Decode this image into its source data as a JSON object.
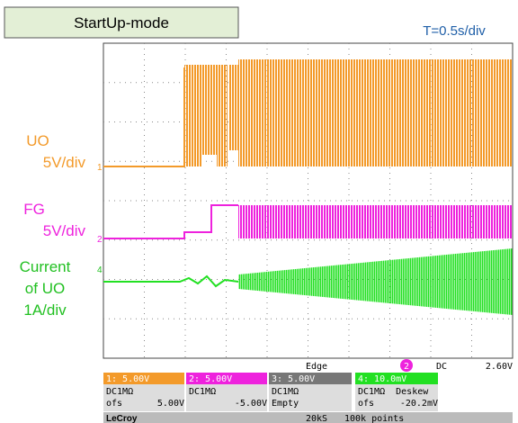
{
  "header": {
    "mode": "StartUp-mode",
    "timebase": "T=0.5s/div"
  },
  "trace_labels": {
    "uo": [
      "UO",
      "5V/div"
    ],
    "fg": [
      "FG",
      "5V/div"
    ],
    "current": [
      "Current",
      "of UO",
      "1A/div"
    ]
  },
  "trace_markers": [
    "1",
    "2",
    "4"
  ],
  "status": {
    "trigger": "Edge",
    "trigger_channel": "2",
    "coupling": "DC",
    "level": "2.60V",
    "channels": [
      {
        "label": "1: 5.00V",
        "coupling": "DC1MΩ",
        "offset_label": "ofs",
        "offset": "5.00V"
      },
      {
        "label": "2: 5.00V",
        "coupling": "DC1MΩ",
        "offset": "-5.00V"
      },
      {
        "label": "3: 5.00V",
        "coupling": "DC1MΩ",
        "offset": "Empty"
      },
      {
        "label": "4: 10.0mV",
        "coupling": "DC1MΩ  Deskew",
        "offset_label": "ofs",
        "offset": "-20.2mV"
      }
    ],
    "brand": "LeCroy",
    "samples": "20kS",
    "points": "100k points"
  }
}
